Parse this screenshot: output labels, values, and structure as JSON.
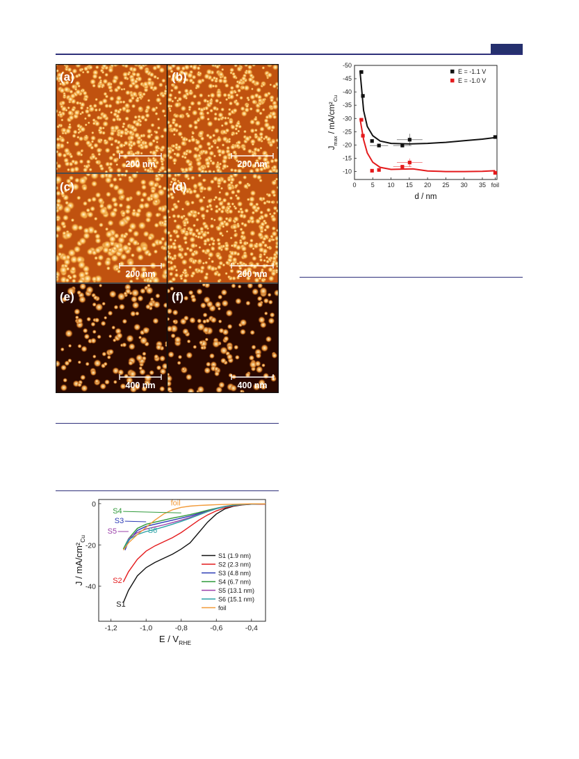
{
  "afm_figure": {
    "panels": [
      {
        "label": "(a)",
        "scale": "200 nm",
        "tone": "bright",
        "density": "dense"
      },
      {
        "label": "(b)",
        "scale": "200 nm",
        "tone": "bright",
        "density": "dense"
      },
      {
        "label": "(c)",
        "scale": "200 nm",
        "tone": "bright",
        "density": "medium"
      },
      {
        "label": "(d)",
        "scale": "200 nm",
        "tone": "bright",
        "density": "dense"
      },
      {
        "label": "(e)",
        "scale": "400 nm",
        "tone": "dark",
        "density": "sparse"
      },
      {
        "label": "(f)",
        "scale": "400 nm",
        "tone": "dark",
        "density": "sparse"
      }
    ],
    "colors": {
      "bright_bg": "#c0520f",
      "dark_bg": "#2a0800",
      "grain": "#ffe6a8"
    }
  },
  "chart_data": [
    {
      "type": "scatter",
      "xlabel": "d / nm",
      "ylabel": "J",
      "ylabel_sub": "max",
      "ylabel_unit": " / mA/cm²",
      "ylabel_unit_sub": "Cu",
      "x_ticks": [
        "0",
        "5",
        "10",
        "15",
        "20",
        "25",
        "30",
        "35",
        "foil"
      ],
      "y_ticks": [
        "-50",
        "-45",
        "-40",
        "-35",
        "-30",
        "-25",
        "-20",
        "-15",
        "-10"
      ],
      "xlim": [
        0,
        39
      ],
      "ylim": [
        -50,
        -7
      ],
      "y_inverted": true,
      "legend_position": "top-right",
      "series": [
        {
          "name": "E = -1.1 V",
          "color": "#111111",
          "points": [
            [
              1.9,
              -47.5
            ],
            [
              2.3,
              -38.5
            ],
            [
              4.8,
              -21.5
            ],
            [
              6.7,
              -19.8
            ],
            [
              13.1,
              -19.8
            ],
            [
              15.1,
              -22.0
            ],
            [
              38.5,
              -23.0
            ]
          ],
          "xerr": [
            0,
            0,
            0,
            2.5,
            2.5,
            3.5,
            0
          ],
          "yerr": [
            0,
            0,
            0,
            0,
            0,
            2.2,
            0
          ],
          "fit": [
            [
              1.5,
              -48
            ],
            [
              2.5,
              -33
            ],
            [
              3.5,
              -27
            ],
            [
              5,
              -23.5
            ],
            [
              7,
              -21.5
            ],
            [
              10,
              -20.6
            ],
            [
              15,
              -20.4
            ],
            [
              20,
              -20.6
            ],
            [
              25,
              -21.0
            ],
            [
              30,
              -21.6
            ],
            [
              35,
              -22.2
            ],
            [
              38.5,
              -22.8
            ]
          ]
        },
        {
          "name": "E = -1.0 V",
          "color": "#e41a1c",
          "points": [
            [
              1.9,
              -29.5
            ],
            [
              2.3,
              -23.5
            ],
            [
              4.8,
              -10.3
            ],
            [
              6.7,
              -10.6
            ],
            [
              13.1,
              -11.8
            ],
            [
              15.1,
              -13.4
            ],
            [
              38.5,
              -9.5
            ]
          ],
          "xerr": [
            0,
            0,
            0,
            0,
            2.5,
            3.5,
            0
          ],
          "yerr": [
            0,
            0,
            0,
            0,
            0,
            1.5,
            0
          ],
          "fit": [
            [
              1.5,
              -30
            ],
            [
              2.5,
              -22
            ],
            [
              3.5,
              -17
            ],
            [
              5,
              -13.5
            ],
            [
              7,
              -11.6
            ],
            [
              10,
              -10.8
            ],
            [
              13,
              -10.9
            ],
            [
              16,
              -11.0
            ],
            [
              20,
              -10.2
            ],
            [
              25,
              -10.0
            ],
            [
              30,
              -10.0
            ],
            [
              35,
              -10.1
            ],
            [
              38.5,
              -10.3
            ]
          ]
        }
      ]
    },
    {
      "type": "line",
      "xlabel": "E / V",
      "xlabel_sub": "RHE",
      "ylabel": "J / mA/cm²",
      "ylabel_sub": "Cu",
      "x_ticks": [
        "-1,2",
        "-1,0",
        "-0,8",
        "-0,6",
        "-0,4"
      ],
      "x_tick_values": [
        -1.2,
        -1.0,
        -0.8,
        -0.6,
        -0.4
      ],
      "y_ticks": [
        "0",
        "-20",
        "-40"
      ],
      "y_tick_values": [
        0,
        -20,
        -40
      ],
      "xlim": [
        -1.27,
        -0.32
      ],
      "ylim": [
        -57,
        2
      ],
      "legend_position": "lower-right",
      "series": [
        {
          "name": "S1 (1.9 nm)",
          "short": "S1",
          "color": "#111111",
          "points": [
            [
              -1.13,
              -48
            ],
            [
              -1.1,
              -42
            ],
            [
              -1.05,
              -35
            ],
            [
              -1.0,
              -31
            ],
            [
              -0.95,
              -28.5
            ],
            [
              -0.9,
              -26.5
            ],
            [
              -0.85,
              -24.5
            ],
            [
              -0.8,
              -22
            ],
            [
              -0.75,
              -19
            ],
            [
              -0.7,
              -14
            ],
            [
              -0.65,
              -9
            ],
            [
              -0.6,
              -5
            ],
            [
              -0.55,
              -2.5
            ],
            [
              -0.5,
              -1.2
            ],
            [
              -0.45,
              -0.6
            ],
            [
              -0.4,
              -0.3
            ],
            [
              -0.32,
              -0.2
            ]
          ]
        },
        {
          "name": "S2 (2.3 nm)",
          "short": "S2",
          "color": "#e41a1c",
          "points": [
            [
              -1.13,
              -38
            ],
            [
              -1.1,
              -33
            ],
            [
              -1.05,
              -27
            ],
            [
              -1.0,
              -23
            ],
            [
              -0.95,
              -20.5
            ],
            [
              -0.9,
              -18.5
            ],
            [
              -0.85,
              -16.5
            ],
            [
              -0.8,
              -14
            ],
            [
              -0.75,
              -11
            ],
            [
              -0.7,
              -8
            ],
            [
              -0.65,
              -5.5
            ],
            [
              -0.6,
              -3.5
            ],
            [
              -0.55,
              -2
            ],
            [
              -0.5,
              -1
            ],
            [
              -0.45,
              -0.5
            ],
            [
              -0.4,
              -0.3
            ],
            [
              -0.32,
              -0.2
            ]
          ]
        },
        {
          "name": "S3 (4.8 nm)",
          "short": "S3",
          "color": "#2b3ab5",
          "points": [
            [
              -1.12,
              -22.5
            ],
            [
              -1.1,
              -18
            ],
            [
              -1.05,
              -13
            ],
            [
              -1.0,
              -11
            ],
            [
              -0.95,
              -10
            ],
            [
              -0.9,
              -9
            ],
            [
              -0.85,
              -8
            ],
            [
              -0.8,
              -7
            ],
            [
              -0.75,
              -6
            ],
            [
              -0.7,
              -4.8
            ],
            [
              -0.65,
              -3.5
            ],
            [
              -0.6,
              -2.3
            ],
            [
              -0.55,
              -1.4
            ],
            [
              -0.5,
              -0.8
            ],
            [
              -0.45,
              -0.4
            ],
            [
              -0.4,
              -0.2
            ],
            [
              -0.32,
              -0.1
            ]
          ]
        },
        {
          "name": "S4 (6.7 nm)",
          "short": "S4",
          "color": "#2f9a3a",
          "points": [
            [
              -1.13,
              -22
            ],
            [
              -1.1,
              -17
            ],
            [
              -1.05,
              -12
            ],
            [
              -1.0,
              -10
            ],
            [
              -0.95,
              -9
            ],
            [
              -0.9,
              -8
            ],
            [
              -0.85,
              -7
            ],
            [
              -0.8,
              -6.2
            ],
            [
              -0.75,
              -5.3
            ],
            [
              -0.7,
              -4.3
            ],
            [
              -0.65,
              -3.2
            ],
            [
              -0.6,
              -2.2
            ],
            [
              -0.55,
              -1.3
            ],
            [
              -0.5,
              -0.7
            ],
            [
              -0.45,
              -0.4
            ],
            [
              -0.4,
              -0.2
            ],
            [
              -0.32,
              -0.1
            ]
          ]
        },
        {
          "name": "S5 (13.1 nm)",
          "short": "S5",
          "color": "#9a3fa9",
          "points": [
            [
              -1.12,
              -21.5
            ],
            [
              -1.1,
              -17
            ],
            [
              -1.05,
              -14
            ],
            [
              -1.0,
              -12.3
            ],
            [
              -0.95,
              -11.3
            ],
            [
              -0.9,
              -10.3
            ],
            [
              -0.85,
              -9.2
            ],
            [
              -0.8,
              -8
            ],
            [
              -0.75,
              -6.7
            ],
            [
              -0.7,
              -5.2
            ],
            [
              -0.65,
              -3.7
            ],
            [
              -0.6,
              -2.4
            ],
            [
              -0.55,
              -1.4
            ],
            [
              -0.5,
              -0.8
            ],
            [
              -0.45,
              -0.4
            ],
            [
              -0.4,
              -0.2
            ],
            [
              -0.32,
              -0.1
            ]
          ]
        },
        {
          "name": "S6 (15.1 nm)",
          "short": "S6",
          "color": "#2aa1a5",
          "points": [
            [
              -1.12,
              -21
            ],
            [
              -1.1,
              -17.5
            ],
            [
              -1.05,
              -15
            ],
            [
              -1.0,
              -13.5
            ],
            [
              -0.95,
              -12.5
            ],
            [
              -0.9,
              -11.3
            ],
            [
              -0.85,
              -10
            ],
            [
              -0.8,
              -8.6
            ],
            [
              -0.75,
              -7.1
            ],
            [
              -0.7,
              -5.5
            ],
            [
              -0.65,
              -3.9
            ],
            [
              -0.6,
              -2.5
            ],
            [
              -0.55,
              -1.5
            ],
            [
              -0.5,
              -0.8
            ],
            [
              -0.45,
              -0.4
            ],
            [
              -0.4,
              -0.2
            ],
            [
              -0.32,
              -0.1
            ]
          ]
        },
        {
          "name": "foil",
          "short": "foil",
          "color": "#f29a38",
          "points": [
            [
              -1.13,
              -22.5
            ],
            [
              -1.1,
              -19
            ],
            [
              -1.05,
              -15
            ],
            [
              -1.0,
              -11.5
            ],
            [
              -0.95,
              -8
            ],
            [
              -0.9,
              -5
            ],
            [
              -0.85,
              -3
            ],
            [
              -0.8,
              -1.8
            ],
            [
              -0.75,
              -1.2
            ],
            [
              -0.7,
              -0.9
            ],
            [
              -0.65,
              -0.7
            ],
            [
              -0.6,
              -0.5
            ],
            [
              -0.55,
              -0.4
            ],
            [
              -0.5,
              -0.3
            ],
            [
              -0.45,
              -0.2
            ],
            [
              -0.4,
              -0.1
            ],
            [
              -0.32,
              -0.1
            ]
          ]
        }
      ],
      "curve_labels": [
        {
          "text": "S4",
          "color": "#2f9a3a",
          "at": [
            -1.19,
            -4.8
          ],
          "leader_to": [
            -0.8,
            -4.5
          ]
        },
        {
          "text": "S3",
          "color": "#2b3ab5",
          "at": [
            -1.18,
            -9.5
          ],
          "leader_to": [
            -1.0,
            -8.8
          ]
        },
        {
          "text": "S5",
          "color": "#9a3fa9",
          "at": [
            -1.22,
            -14.5
          ],
          "leader_to": [
            -1.1,
            -13.5
          ]
        },
        {
          "text": "S6",
          "color": "#2aa1a5",
          "at": [
            -0.99,
            -14.2
          ],
          "leader_to": null
        },
        {
          "text": "foil",
          "color": "#f29a38",
          "at": [
            -0.86,
            -0.8
          ],
          "leader_to": null
        },
        {
          "text": "S2",
          "color": "#e41a1c",
          "at": [
            -1.19,
            -38.5
          ],
          "leader_to": null
        },
        {
          "text": "S1",
          "color": "#111111",
          "at": [
            -1.17,
            -50
          ],
          "leader_to": null
        }
      ]
    }
  ]
}
